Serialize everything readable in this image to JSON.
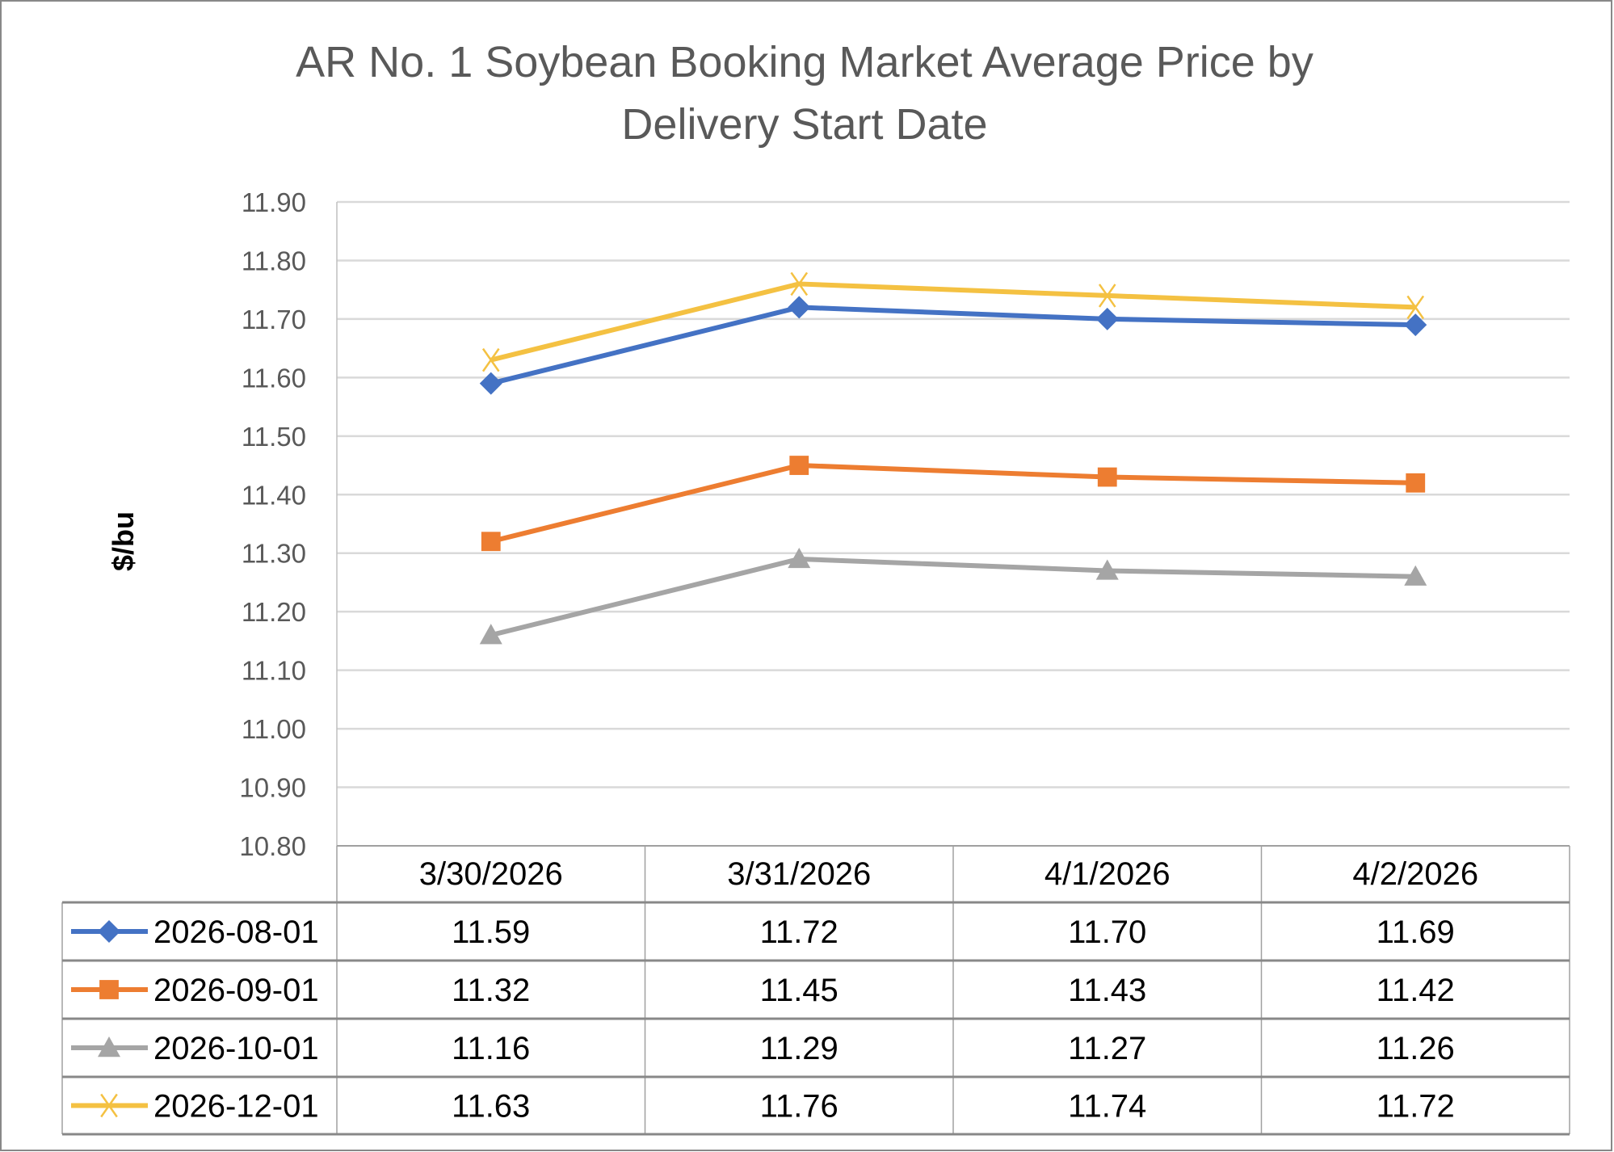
{
  "chart_data": {
    "type": "line",
    "title_lines": [
      "AR No. 1 Soybean Booking Market Average Price by",
      "Delivery Start Date"
    ],
    "xlabel": "",
    "ylabel": "$/bu",
    "categories": [
      "3/30/2026",
      "3/31/2026",
      "4/1/2026",
      "4/2/2026"
    ],
    "ylim": [
      10.8,
      11.9
    ],
    "ytick_step": 0.1,
    "yticks": [
      "10.80",
      "10.90",
      "11.00",
      "11.10",
      "11.20",
      "11.30",
      "11.40",
      "11.50",
      "11.60",
      "11.70",
      "11.80",
      "11.90"
    ],
    "grid": true,
    "legend": "data-table-bottom",
    "series": [
      {
        "name": "2026-08-01",
        "color": "#4472C4",
        "marker": "diamond",
        "values": [
          11.59,
          11.72,
          11.7,
          11.69
        ],
        "labels": [
          "11.59",
          "11.72",
          "11.70",
          "11.69"
        ]
      },
      {
        "name": "2026-09-01",
        "color": "#ED7D31",
        "marker": "square",
        "values": [
          11.32,
          11.45,
          11.43,
          11.42
        ],
        "labels": [
          "11.32",
          "11.45",
          "11.43",
          "11.42"
        ]
      },
      {
        "name": "2026-10-01",
        "color": "#A5A5A5",
        "marker": "triangle",
        "values": [
          11.16,
          11.29,
          11.27,
          11.26
        ],
        "labels": [
          "11.16",
          "11.29",
          "11.27",
          "11.26"
        ]
      },
      {
        "name": "2026-12-01",
        "color": "#F4C142",
        "marker": "x",
        "values": [
          11.63,
          11.76,
          11.74,
          11.72
        ],
        "labels": [
          "11.63",
          "11.76",
          "11.74",
          "11.72"
        ]
      }
    ]
  }
}
